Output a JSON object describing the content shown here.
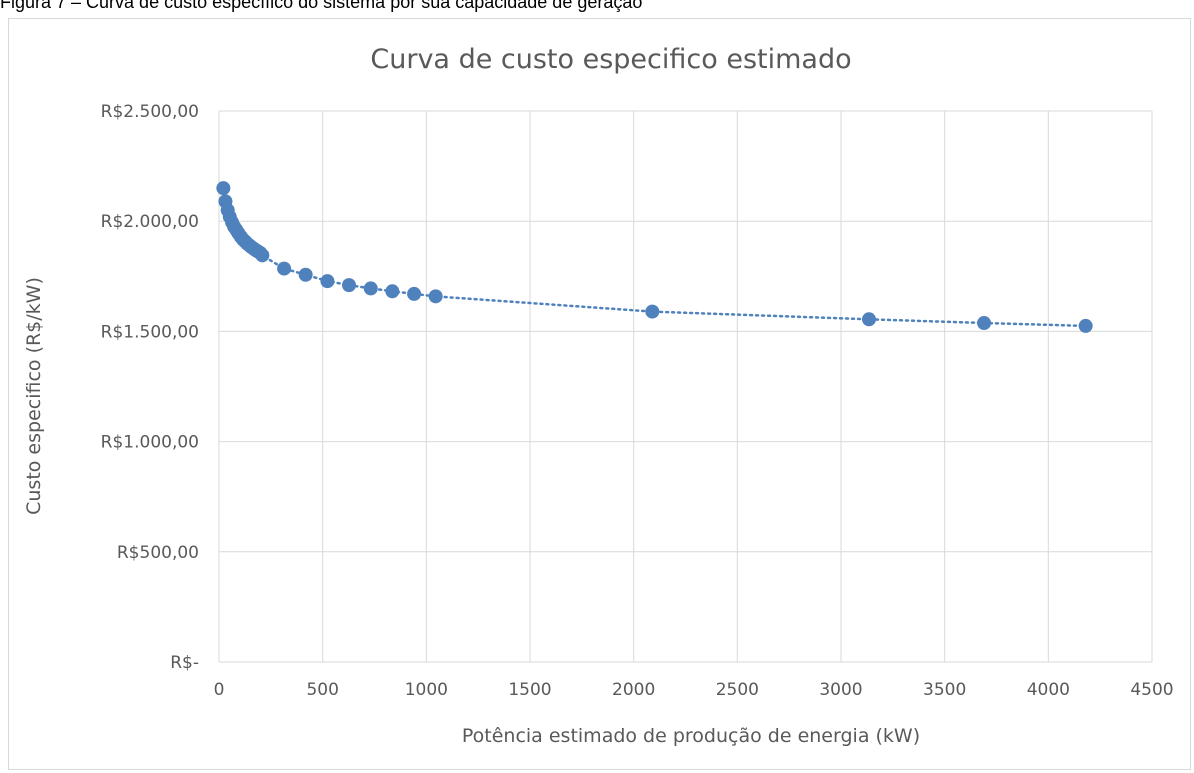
{
  "caption": "Figura 7 – Curva de custo específico do sistema por sua capacidade de geração",
  "chart_data": {
    "type": "scatter",
    "title": "Curva de custo especifico estimado",
    "xlabel": "Potência estimado de produção de energia (kW)",
    "ylabel": "Custo especifico (R$/kW)",
    "xlim": [
      0,
      4500
    ],
    "ylim": [
      0,
      2500
    ],
    "x_ticks": [
      0,
      500,
      1000,
      1500,
      2000,
      2500,
      3000,
      3500,
      4000,
      4500
    ],
    "x_tick_labels": [
      "0",
      "500",
      "1000",
      "1500",
      "2000",
      "2500",
      "3000",
      "3500",
      "4000",
      "4500"
    ],
    "y_ticks": [
      0,
      500,
      1000,
      1500,
      2000,
      2500
    ],
    "y_tick_labels": [
      "R$-",
      "R$500,00",
      "R$1.000,00",
      "R$1.500,00",
      "R$2.000,00",
      "R$2.500,00"
    ],
    "grid": true,
    "marker_color": "#4f81bd",
    "trendline": "dotted",
    "series": [
      {
        "x": [
          21,
          31,
          42,
          52,
          63,
          73,
          84,
          94,
          105,
          115,
          126,
          136,
          147,
          157,
          168,
          178,
          189,
          199,
          209,
          314,
          418,
          523,
          627,
          732,
          836,
          941,
          1045,
          2090,
          3135,
          3690,
          4180
        ],
        "y": [
          2150,
          2090,
          2050,
          2020,
          1995,
          1975,
          1960,
          1945,
          1930,
          1918,
          1908,
          1898,
          1890,
          1882,
          1875,
          1868,
          1862,
          1856,
          1845,
          1785,
          1757,
          1728,
          1710,
          1695,
          1682,
          1670,
          1659,
          1590,
          1555,
          1538,
          1525
        ]
      }
    ]
  }
}
